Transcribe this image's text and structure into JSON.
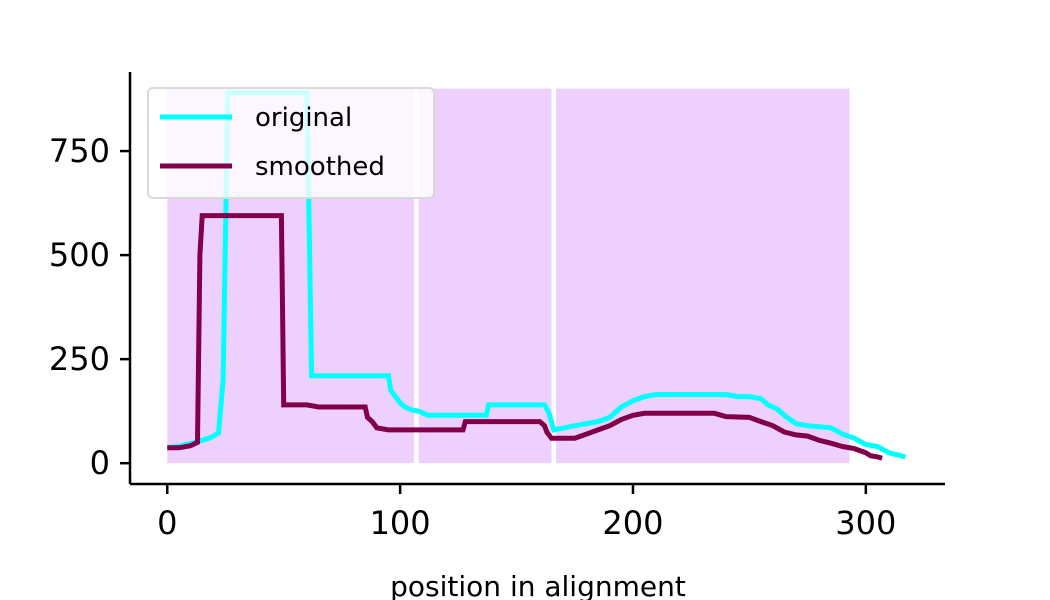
{
  "chart_data": {
    "type": "line",
    "title": "",
    "xlabel": "position in alignment",
    "ylabel": "",
    "xlim": [
      -16,
      334
    ],
    "ylim": [
      -50,
      940
    ],
    "xticks": [
      0,
      100,
      200,
      300
    ],
    "yticks": [
      0,
      250,
      500,
      750
    ],
    "grid": false,
    "legend_position": "top-left",
    "shaded_regions": [
      {
        "x_start": 0,
        "x_end": 106,
        "y_top": 900,
        "color": "#eed0ff"
      },
      {
        "x_start": 108,
        "x_end": 165,
        "y_top": 900,
        "color": "#eed0ff"
      },
      {
        "x_start": 167,
        "x_end": 293,
        "y_top": 900,
        "color": "#eed0ff"
      }
    ],
    "series": [
      {
        "name": "original",
        "color": "#00ffff",
        "x": [
          0,
          5,
          8,
          12,
          15,
          18,
          22,
          24,
          26,
          35,
          45,
          55,
          58,
          60,
          62,
          70,
          80,
          90,
          95,
          96,
          100,
          102,
          105,
          108,
          112,
          120,
          130,
          137,
          138,
          145,
          155,
          162,
          164,
          166,
          175,
          180,
          185,
          190,
          195,
          200,
          205,
          210,
          220,
          230,
          240,
          245,
          250,
          255,
          258,
          262,
          265,
          270,
          275,
          285,
          290,
          295,
          300,
          305,
          310,
          315,
          317
        ],
        "y": [
          38,
          40,
          45,
          50,
          55,
          60,
          72,
          200,
          890,
          890,
          890,
          890,
          890,
          890,
          210,
          210,
          210,
          210,
          210,
          175,
          145,
          135,
          128,
          125,
          115,
          115,
          115,
          115,
          140,
          140,
          140,
          140,
          120,
          80,
          90,
          95,
          100,
          110,
          135,
          150,
          160,
          165,
          165,
          165,
          165,
          160,
          160,
          155,
          140,
          130,
          115,
          95,
          90,
          85,
          70,
          60,
          45,
          40,
          25,
          18,
          15
        ]
      },
      {
        "name": "smoothed",
        "color": "#80004a",
        "x": [
          0,
          5,
          10,
          13,
          14,
          15,
          20,
          30,
          40,
          49,
          50,
          55,
          60,
          65,
          70,
          80,
          85,
          86,
          88,
          90,
          95,
          100,
          110,
          120,
          127,
          128,
          135,
          145,
          160,
          162,
          163,
          165,
          170,
          175,
          180,
          185,
          190,
          195,
          200,
          205,
          210,
          220,
          230,
          235,
          240,
          250,
          255,
          260,
          265,
          270,
          275,
          280,
          285,
          290,
          295,
          300,
          302,
          305,
          307
        ],
        "y": [
          37,
          37,
          42,
          50,
          500,
          595,
          595,
          595,
          595,
          595,
          140,
          140,
          140,
          135,
          135,
          135,
          135,
          110,
          100,
          85,
          80,
          80,
          80,
          80,
          80,
          100,
          100,
          100,
          100,
          90,
          75,
          60,
          60,
          60,
          70,
          80,
          90,
          105,
          115,
          120,
          120,
          120,
          120,
          120,
          112,
          110,
          100,
          90,
          75,
          68,
          65,
          55,
          48,
          40,
          35,
          25,
          18,
          15,
          12
        ]
      }
    ]
  }
}
